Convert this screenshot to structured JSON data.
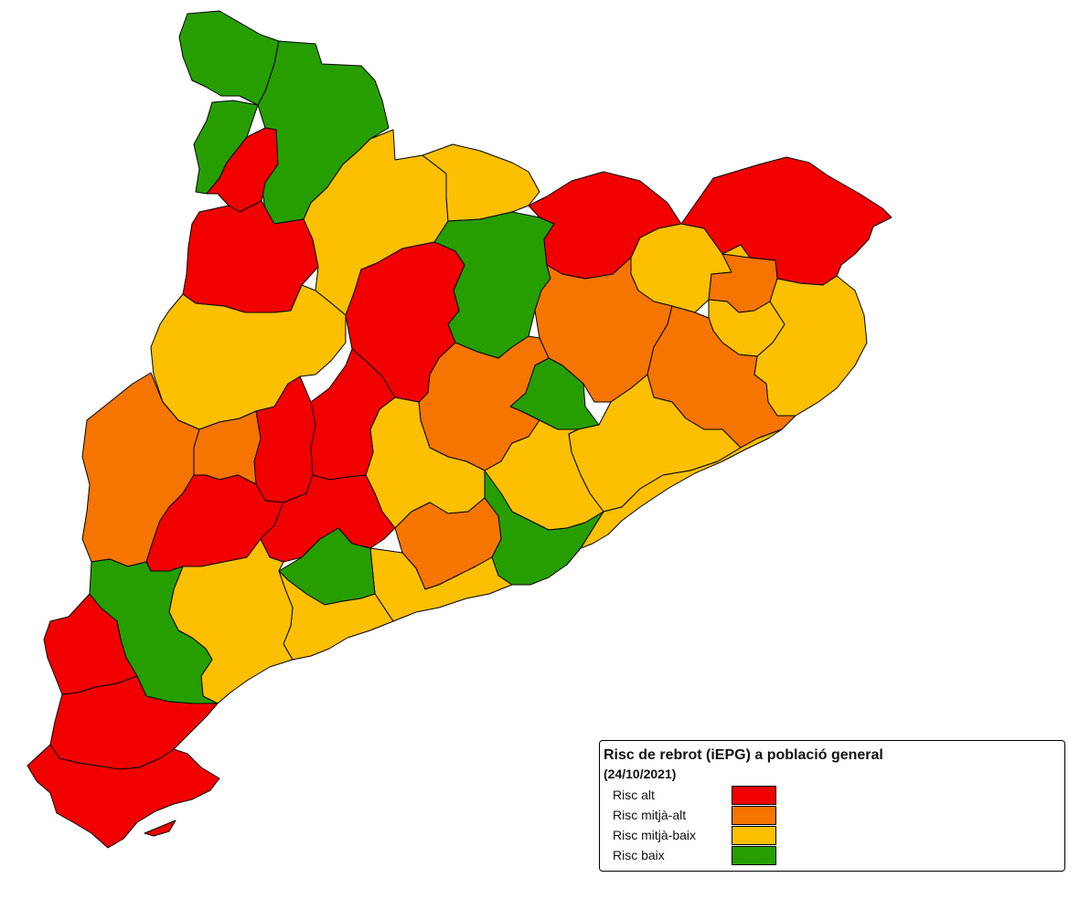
{
  "legend": {
    "title": "Risc de rebrot (iEPG) a població general",
    "date": "(24/10/2021)",
    "items": [
      {
        "label": "Risc alt",
        "color": "#f20000"
      },
      {
        "label": "Risc mitjà-alt",
        "color": "#f57500"
      },
      {
        "label": "Risc mitjà-baix",
        "color": "#fcc000"
      },
      {
        "label": "Risc baix",
        "color": "#279e00"
      }
    ]
  },
  "colors": {
    "alt": "#f20000",
    "mitja_alt": "#f57500",
    "mitja_baix": "#fcc000",
    "baix": "#279e00",
    "border": "#000000",
    "background": "#ffffff"
  }
}
